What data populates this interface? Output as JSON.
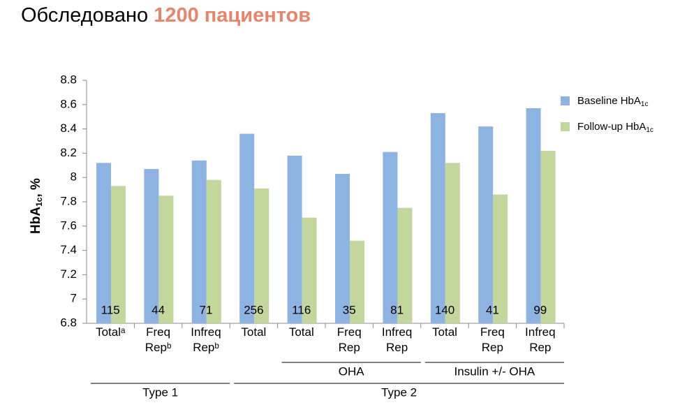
{
  "header": {
    "text": "Обследовано",
    "highlight": "1200 пациентов"
  },
  "chart_data": {
    "type": "bar",
    "ylabel": "HbA",
    "ylabel_sub": "1c",
    "ylabel_suffix": ", %",
    "categories": [
      "Totalᵃ",
      "Freq Repᵇ",
      "Infreq Repᵇ",
      "Total",
      "Total",
      "Freq Rep",
      "Infreq Rep",
      "Total",
      "Freq Rep",
      "Infreq Rep"
    ],
    "n": [
      115,
      44,
      71,
      256,
      116,
      35,
      81,
      140,
      41,
      99
    ],
    "series": [
      {
        "name": "Baseline HbA",
        "name_sub": "1c",
        "color": "#8db3e2",
        "values": [
          8.12,
          8.07,
          8.14,
          8.36,
          8.18,
          8.03,
          8.21,
          8.53,
          8.42,
          8.57
        ]
      },
      {
        "name": "Follow-up HbA",
        "name_sub": "1c",
        "color": "#c3d69b",
        "values": [
          7.93,
          7.85,
          7.98,
          7.91,
          7.67,
          7.48,
          7.75,
          8.12,
          7.86,
          8.22
        ]
      }
    ],
    "groups": [
      {
        "label": "OHA",
        "start": 4,
        "end": 6,
        "level": 1
      },
      {
        "label": "Insulin +/- OHA",
        "start": 7,
        "end": 9,
        "level": 1
      },
      {
        "label": "Type 1",
        "start": 0,
        "end": 2,
        "level": 2
      },
      {
        "label": "Type 2",
        "start": 3,
        "end": 9,
        "level": 2
      }
    ],
    "ylim": [
      6.8,
      8.8
    ],
    "yticks": [
      6.8,
      7,
      7.2,
      7.4,
      7.6,
      7.8,
      8,
      8.2,
      8.4,
      8.6,
      8.8
    ],
    "legend": "right"
  }
}
